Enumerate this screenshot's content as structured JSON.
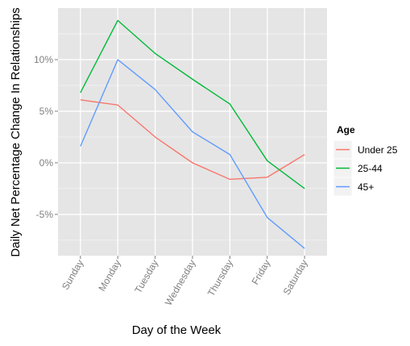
{
  "chart_data": {
    "type": "line",
    "title": "",
    "xlabel": "Day of the Week",
    "ylabel": "Daily Net Percentage Change In Relationships",
    "categories": [
      "Sunday",
      "Monday",
      "Tuesday",
      "Wednesday",
      "Thursday",
      "Friday",
      "Saturday"
    ],
    "yticks": [
      -5,
      0,
      5,
      10
    ],
    "ytick_labels": [
      "-5%",
      "0%",
      "5%",
      "10%"
    ],
    "ylim": [
      -9.0,
      15.0
    ],
    "grid": true,
    "legend": {
      "title": "Age",
      "position": "right"
    },
    "series": [
      {
        "name": "Under 25",
        "color": "#f8766d",
        "values": [
          6.1,
          5.6,
          2.5,
          0.0,
          -1.6,
          -1.4,
          0.8
        ]
      },
      {
        "name": "25-44",
        "color": "#00ba38",
        "values": [
          6.8,
          13.8,
          10.6,
          8.1,
          5.7,
          0.2,
          -2.5
        ]
      },
      {
        "name": "45+",
        "color": "#619cff",
        "values": [
          1.6,
          10.0,
          7.1,
          3.0,
          0.8,
          -5.3,
          -8.3
        ]
      }
    ]
  },
  "colors": {
    "panel_background": "#e5e5e5",
    "grid_line": "#ffffff",
    "tick_label": "#7f7f7f"
  }
}
